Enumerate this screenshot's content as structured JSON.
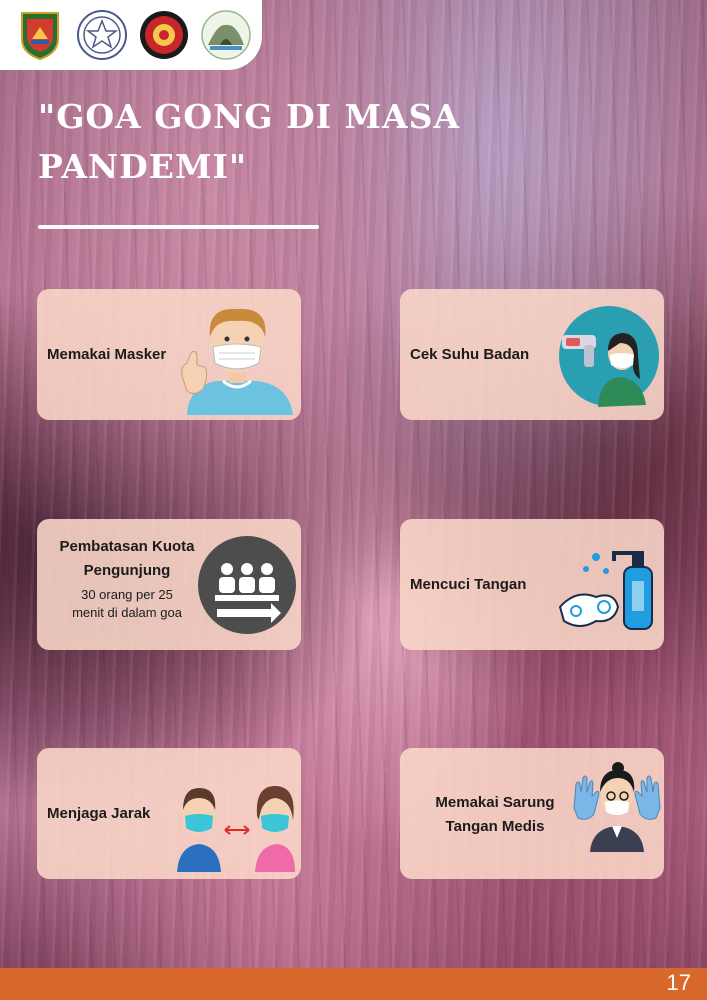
{
  "header": {
    "logos": [
      "kabupaten-crest-icon",
      "university-seal-icon",
      "organization-emblem-icon",
      "cave-tourism-logo-icon"
    ]
  },
  "title": {
    "line1": "\"GOA GONG DI MASA",
    "line2": "PANDEMI\""
  },
  "cards": {
    "masker": {
      "label": "Memakai Masker"
    },
    "suhu": {
      "label": "Cek Suhu Badan"
    },
    "kuota": {
      "label_line1": "Pembatasan Kuota",
      "label_line2": "Pengunjung",
      "sub_line1": "30 orang per 25",
      "sub_line2": "menit di dalam goa"
    },
    "cuci": {
      "label": "Mencuci Tangan"
    },
    "jarak": {
      "label": "Menjaga Jarak"
    },
    "sarung": {
      "label_line1": "Memakai Sarung",
      "label_line2": "Tangan Medis"
    }
  },
  "footer": {
    "page_number": "17"
  },
  "colors": {
    "footer": "#d9692a",
    "card_bg": "#fad7c8",
    "title": "#ffffff"
  }
}
